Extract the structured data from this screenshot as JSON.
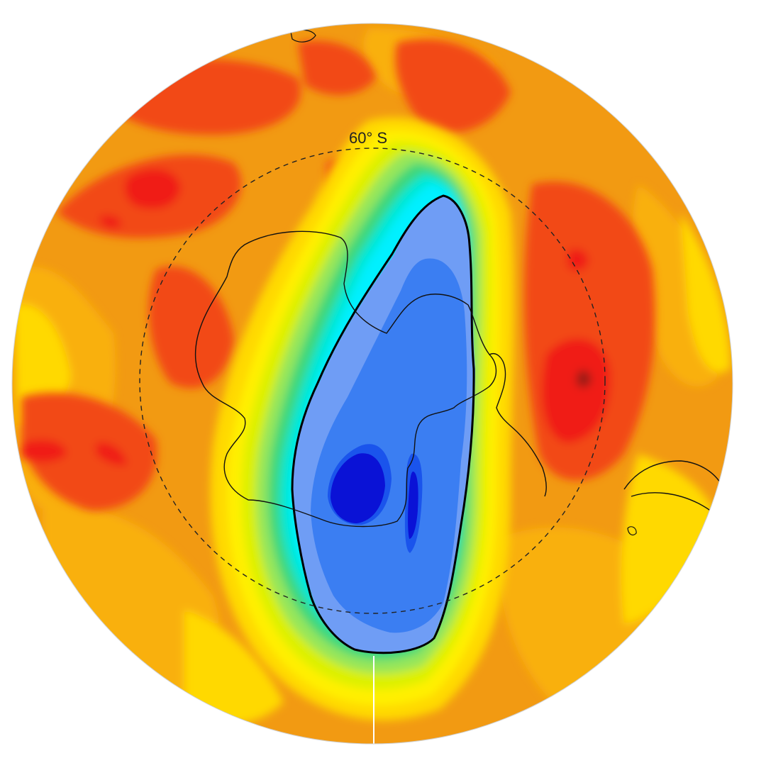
{
  "map": {
    "latitude_circle_label": "60° S",
    "colors": {
      "ocean_background": "#f29a12",
      "dark_red": "#9b1a12",
      "red": "#f01a12",
      "red_orange": "#f24a12",
      "orange": "#f5820d",
      "amber": "#f9b010",
      "yellow": "#ffd900",
      "yellow_bright": "#fff000",
      "yellow_green": "#dcf000",
      "light_green": "#96e65a",
      "green": "#3cd77a",
      "aqua": "#00e6d2",
      "cyan": "#00f0ff",
      "light_blue": "#6f9df5",
      "mid_blue": "#3b7ef2",
      "blue": "#1a54ec",
      "deep_blue": "#0a12d6",
      "coastline": "#111111",
      "contour": "#000000"
    },
    "icons": [
      "latitude-circle-60s",
      "antarctica-coastline",
      "south-america-coastline",
      "ozone-hole-contour"
    ]
  }
}
